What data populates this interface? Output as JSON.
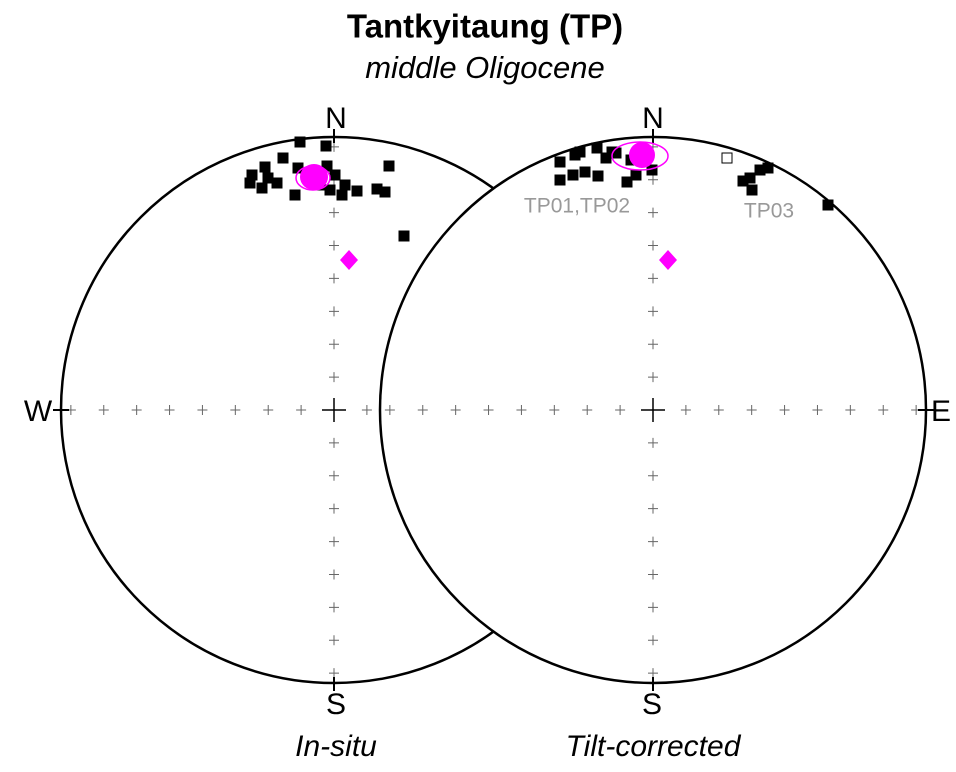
{
  "header": {
    "title": "Tantkyitaung (TP)",
    "subtitle": "middle Oligocene"
  },
  "left_net": {
    "north": "N",
    "south": "S",
    "west": "W",
    "caption": "In-situ"
  },
  "right_net": {
    "north": "N",
    "south": "S",
    "east": "E",
    "caption": "Tilt-corrected",
    "labels": [
      "TP01,TP02",
      "TP03"
    ]
  }
}
